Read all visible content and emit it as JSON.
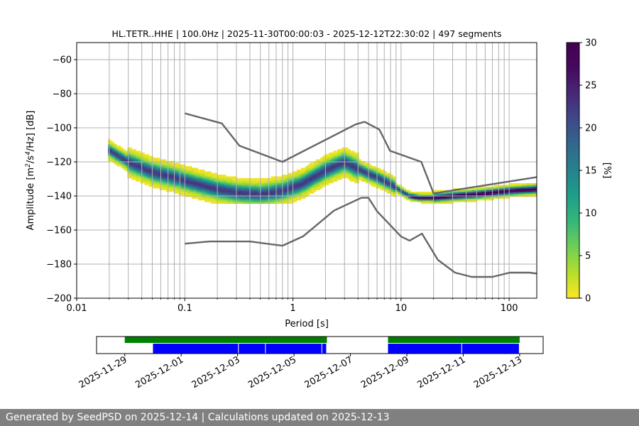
{
  "chart_data": [
    {
      "type": "heatmap",
      "title": "HL.TETR..HHE | 100.0Hz | 2025-11-30T00:00:03 - 2025-12-12T22:30:02 | 497 segments",
      "xlabel": "Period [s]",
      "ylabel_main": "Amplitude [m",
      "ylabel_sup1": "2",
      "ylabel_mid": "/s",
      "ylabel_sup2": "4",
      "ylabel_end": "/Hz] [dB]",
      "x_scale": "log",
      "xlim": [
        0.01,
        180
      ],
      "ylim": [
        -200,
        -50
      ],
      "grid": true,
      "x_tick_labels": [
        {
          "value": 0.01,
          "label": "0.01"
        },
        {
          "value": 0.1,
          "label": "0.1"
        },
        {
          "value": 1,
          "label": "1"
        },
        {
          "value": 10,
          "label": "10"
        },
        {
          "value": 100,
          "label": "100"
        }
      ],
      "y_tick_labels": [
        {
          "value": -60,
          "label": "−60"
        },
        {
          "value": -80,
          "label": "−80"
        },
        {
          "value": -100,
          "label": "−100"
        },
        {
          "value": -120,
          "label": "−120"
        },
        {
          "value": -140,
          "label": "−140"
        },
        {
          "value": -160,
          "label": "−160"
        },
        {
          "value": -180,
          "label": "−180"
        },
        {
          "value": -200,
          "label": "−200"
        }
      ],
      "colorbar": {
        "label": "[%]",
        "range": [
          0,
          30
        ],
        "ticks": [
          "0",
          "5",
          "10",
          "15",
          "20",
          "25",
          "30"
        ],
        "colormap": "viridis_r"
      },
      "mode_curve": {
        "period": [
          0.02,
          0.03,
          0.05,
          0.08,
          0.1,
          0.15,
          0.2,
          0.3,
          0.5,
          0.8,
          1.2,
          2,
          3,
          4,
          5,
          6,
          8,
          10,
          12,
          15,
          20,
          30,
          50,
          100,
          180
        ],
        "db": [
          -113,
          -120,
          -126,
          -129,
          -131,
          -134,
          -136,
          -138,
          -139,
          -137,
          -133,
          -125,
          -120,
          -124,
          -127,
          -129,
          -133,
          -137,
          -140,
          -141,
          -141,
          -140,
          -139,
          -137,
          -136
        ]
      },
      "nhnm": {
        "period": [
          0.1,
          0.17,
          0.22,
          0.32,
          0.8,
          3.8,
          4.6,
          6.3,
          7.9,
          15.4,
          20,
          354.8
        ],
        "db": [
          -91.5,
          -95.5,
          -97.4,
          -110.5,
          -120,
          -98,
          -96.5,
          -101,
          -113.5,
          -120,
          -138.5,
          -126
        ]
      },
      "nlnm": {
        "period": [
          0.1,
          0.17,
          0.4,
          0.8,
          1.24,
          2.4,
          4.3,
          5,
          6,
          10,
          12,
          15.6,
          21.9,
          31.6,
          45,
          70,
          101,
          154,
          328,
          600
        ],
        "db": [
          -168,
          -166.7,
          -166.7,
          -169.2,
          -163.7,
          -148.6,
          -141.1,
          -141.1,
          -149,
          -163.8,
          -166.2,
          -162.1,
          -177.5,
          -185,
          -187.5,
          -187.5,
          -185,
          -185,
          -187.5,
          -184.4
        ]
      }
    },
    {
      "type": "timeline",
      "x_tick_labels": [
        "2025-11-29",
        "2025-12-01",
        "2025-12-03",
        "2025-12-05",
        "2025-12-07",
        "2025-12-09",
        "2025-12-11",
        "2025-12-13"
      ],
      "xlim": [
        "2025-11-28T00:00",
        "2025-12-13T20:00"
      ],
      "data_available": [
        {
          "start": "2025-11-29T00:00",
          "end": "2025-12-06T04:00"
        },
        {
          "start": "2025-12-08T08:00",
          "end": "2025-12-13T00:00"
        }
      ],
      "psd_used": [
        {
          "start": "2025-11-30T00:00",
          "end": "2025-12-03T01:00"
        },
        {
          "start": "2025-12-03T01:00",
          "end": "2025-12-04T00:00"
        },
        {
          "start": "2025-12-04T00:00",
          "end": "2025-12-06T00:00"
        },
        {
          "start": "2025-12-06T00:00",
          "end": "2025-12-06T04:00"
        },
        {
          "start": "2025-12-08T08:00",
          "end": "2025-12-10T23:00"
        },
        {
          "start": "2025-12-10T23:00",
          "end": "2025-12-13T00:00"
        }
      ],
      "colors": {
        "data_available": "#008000",
        "psd_used": "#0000ff"
      }
    }
  ],
  "footer": "Generated by SeedPSD on 2025-12-14 | Calculations updated on 2025-12-13"
}
